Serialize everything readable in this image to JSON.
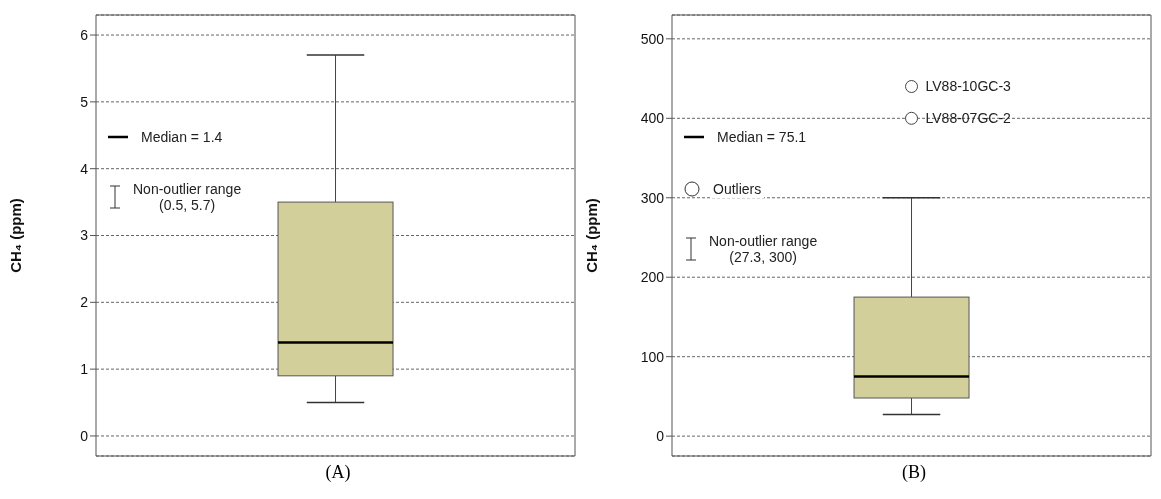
{
  "chart_data": [
    {
      "type": "box",
      "xlabel": "(A)",
      "ylabel": "CH₄ (ppm)",
      "categories": [
        null
      ],
      "color": "#d3cf9b",
      "boxes": [
        {
          "low": 0.5,
          "q1": 0.9,
          "median": 1.4,
          "q3": 3.5,
          "high": 5.7
        }
      ],
      "ylim": [
        -0.3,
        6.3
      ],
      "yticks": [
        0,
        1,
        2,
        3,
        4,
        5,
        6
      ],
      "grid": "y",
      "annotations": [
        "Median = 1.4",
        "Non-outlier range\n(0.5, 5.7)"
      ]
    },
    {
      "type": "box",
      "xlabel": "(B)",
      "ylabel": "CH₄ (ppm)",
      "categories": [
        null
      ],
      "color": "#d3cf9b",
      "boxes": [
        {
          "low": 27.3,
          "q1": 48,
          "median": 75.1,
          "q3": 175,
          "high": 300,
          "outliers": [
            440,
            400
          ]
        }
      ],
      "ylim": [
        -25,
        530
      ],
      "yticks": [
        0,
        100,
        200,
        300,
        400,
        500
      ],
      "grid": "y",
      "annotations": [
        "LV88-10GC-3",
        "LV88-07GC-2",
        "Median = 75.1",
        "Outliers",
        "Non-outlier range\n(27.3, 300)"
      ]
    }
  ]
}
